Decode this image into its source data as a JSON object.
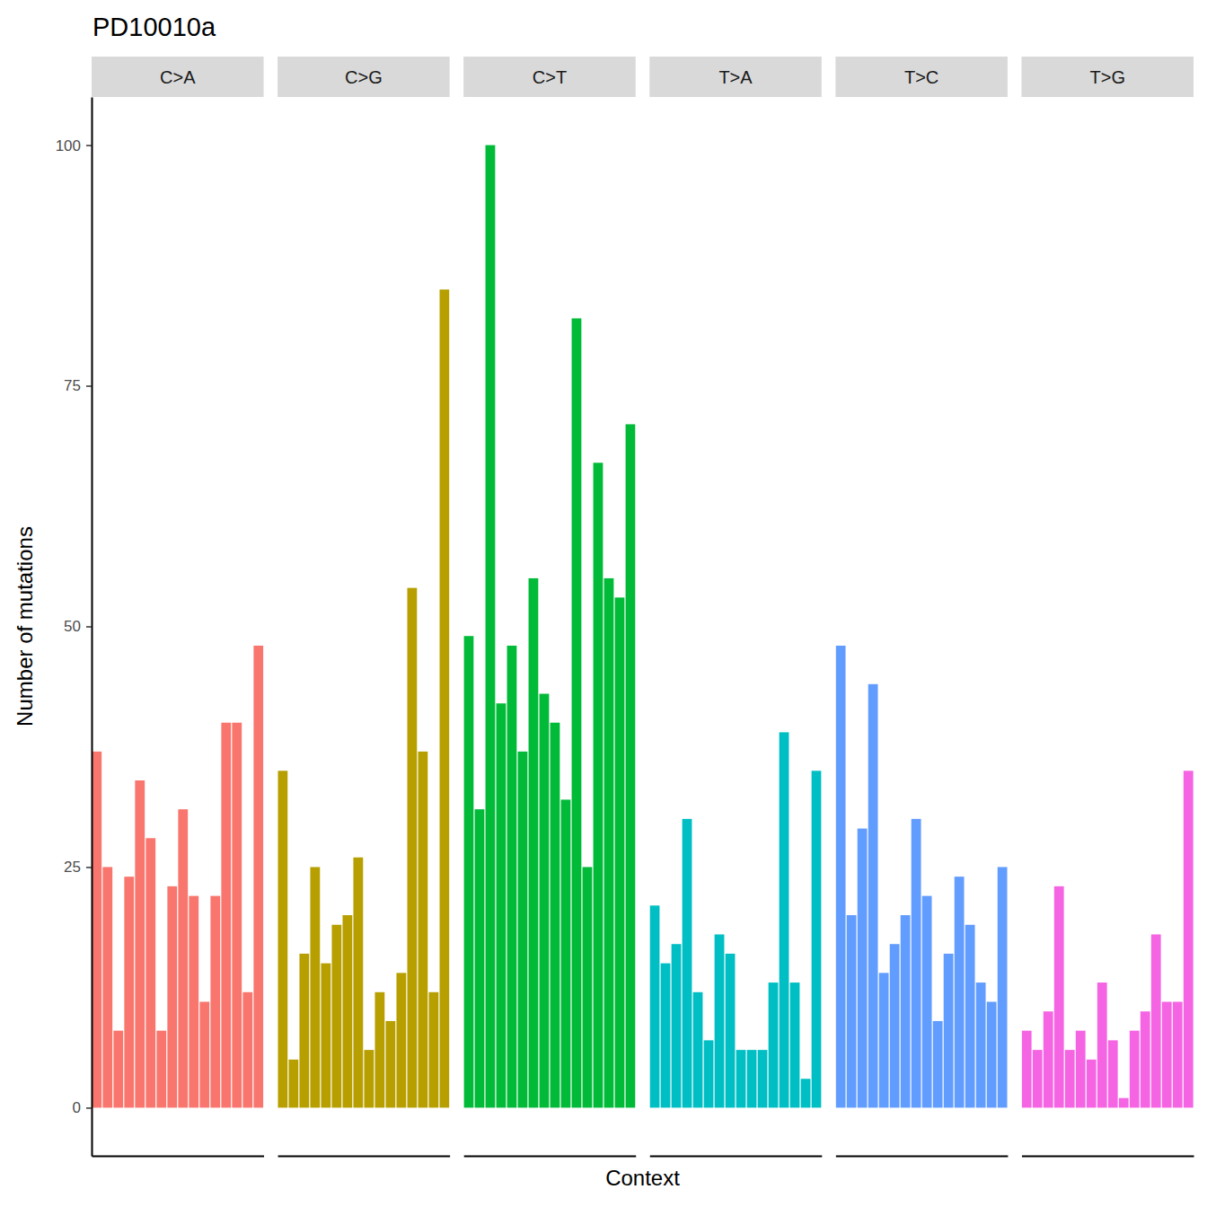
{
  "chart_data": {
    "type": "bar",
    "title": "PD10010a",
    "x_label": "Context",
    "y_label": "Number of mutations",
    "series": [
      {
        "name": "C>A",
        "color": "#F8766D",
        "values": [
          37,
          25,
          8,
          24,
          34,
          28,
          8,
          23,
          31,
          22,
          11,
          22,
          40,
          40,
          12,
          48
        ]
      },
      {
        "name": "C>G",
        "color": "#B79F00",
        "values": [
          35,
          5,
          16,
          25,
          15,
          19,
          20,
          26,
          6,
          12,
          9,
          14,
          54,
          37,
          12,
          85
        ]
      },
      {
        "name": "C>T",
        "color": "#00BA38",
        "values": [
          49,
          31,
          100,
          42,
          48,
          37,
          55,
          43,
          40,
          32,
          82,
          25,
          67,
          55,
          53,
          71
        ]
      },
      {
        "name": "T>A",
        "color": "#00BFC4",
        "values": [
          21,
          15,
          17,
          30,
          12,
          7,
          18,
          16,
          6,
          6,
          6,
          13,
          39,
          13,
          3,
          35
        ]
      },
      {
        "name": "T>C",
        "color": "#619CFF",
        "values": [
          48,
          20,
          29,
          44,
          14,
          17,
          20,
          30,
          22,
          9,
          16,
          24,
          19,
          13,
          11,
          25
        ]
      },
      {
        "name": "T>G",
        "color": "#F564E3",
        "values": [
          8,
          6,
          10,
          23,
          6,
          8,
          5,
          13,
          7,
          1,
          8,
          10,
          18,
          11,
          11,
          35
        ]
      }
    ],
    "ylim": [
      -5,
      105
    ],
    "yticks": [
      0,
      25,
      50,
      75,
      100
    ],
    "grid": false,
    "tick_labels": "y"
  }
}
